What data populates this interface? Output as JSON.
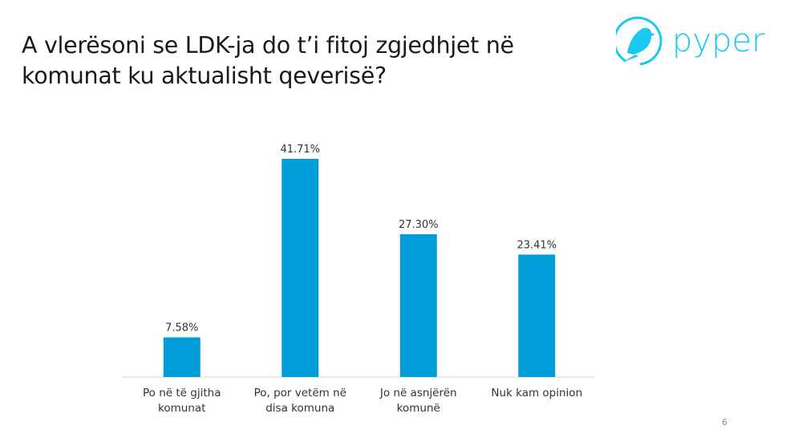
{
  "title": "A vlerësoni se LDK-ja do t’i fitoj zgjedhjet në komunat ku aktualisht qeverisë?",
  "logo": {
    "text": "pyper",
    "color": "#1cc7f0",
    "icon": "bird-icon"
  },
  "page_number": "6",
  "chart_data": {
    "type": "bar",
    "title": "",
    "categories": [
      [
        "Po në të gjitha",
        "komunat"
      ],
      [
        "Po, por vetëm në",
        "disa komuna"
      ],
      [
        "Jo në asnjërën",
        "komunë"
      ],
      [
        "Nuk kam opinion"
      ]
    ],
    "values": [
      7.58,
      41.71,
      27.3,
      23.41
    ],
    "data_labels": [
      "7.58%",
      "41.71%",
      "27.30%",
      "23.41%"
    ],
    "ylim": [
      0,
      45
    ],
    "grid": false,
    "bar_color": "#029dd8",
    "axis_color": "#d9d9d9"
  }
}
